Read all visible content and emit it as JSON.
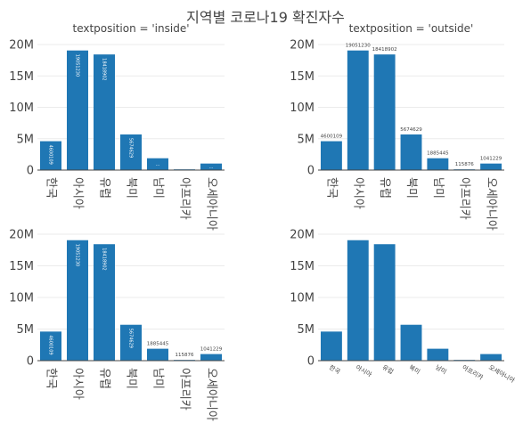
{
  "title": "지역별 코로나19 확진자수",
  "colors": {
    "bar": "#1f77b4",
    "grid": "#ebebeb",
    "axis_line": "#444444",
    "text": "#444444"
  },
  "chart_data": [
    {
      "type": "bar",
      "title": "textposition = 'inside'",
      "categories": [
        "한국",
        "아시아",
        "유럽",
        "북미",
        "남미",
        "아프리카",
        "오세아니아"
      ],
      "values": [
        4600109,
        19051230,
        18418902,
        5674629,
        1885445,
        115876,
        1041229
      ],
      "yticks": [
        "0",
        "5M",
        "10M",
        "15M",
        "20M"
      ],
      "ylim": [
        0,
        20000000
      ],
      "textposition": "inside",
      "tick_angle": 90,
      "grid": true
    },
    {
      "type": "bar",
      "title": "textposition = 'outside'",
      "categories": [
        "한국",
        "아시아",
        "유럽",
        "북미",
        "남미",
        "아프리카",
        "오세아니아"
      ],
      "values": [
        4600109,
        19051230,
        18418902,
        5674629,
        1885445,
        115876,
        1041229
      ],
      "yticks": [
        "0",
        "5M",
        "10M",
        "15M",
        "20M"
      ],
      "ylim": [
        0,
        20000000
      ],
      "textposition": "outside",
      "tick_angle": 90,
      "grid": true
    },
    {
      "type": "bar",
      "title": "",
      "categories": [
        "한국",
        "아시아",
        "유럽",
        "북미",
        "남미",
        "아프리카",
        "오세아니아"
      ],
      "values": [
        4600109,
        19051230,
        18418902,
        5674629,
        1885445,
        115876,
        1041229
      ],
      "yticks": [
        "0",
        "5M",
        "10M",
        "15M",
        "20M"
      ],
      "ylim": [
        0,
        20000000
      ],
      "textposition": "auto",
      "tick_angle": 90,
      "grid": true
    },
    {
      "type": "bar",
      "title": "",
      "categories": [
        "한국",
        "아시아",
        "유럽",
        "북미",
        "남미",
        "아프리카",
        "오세아니아"
      ],
      "values": [
        4600109,
        19051230,
        18418902,
        5674629,
        1885445,
        115876,
        1041229
      ],
      "yticks": [
        "0",
        "5M",
        "10M",
        "15M",
        "20M"
      ],
      "ylim": [
        0,
        20000000
      ],
      "textposition": "none",
      "tick_angle": 30,
      "grid": true
    }
  ]
}
